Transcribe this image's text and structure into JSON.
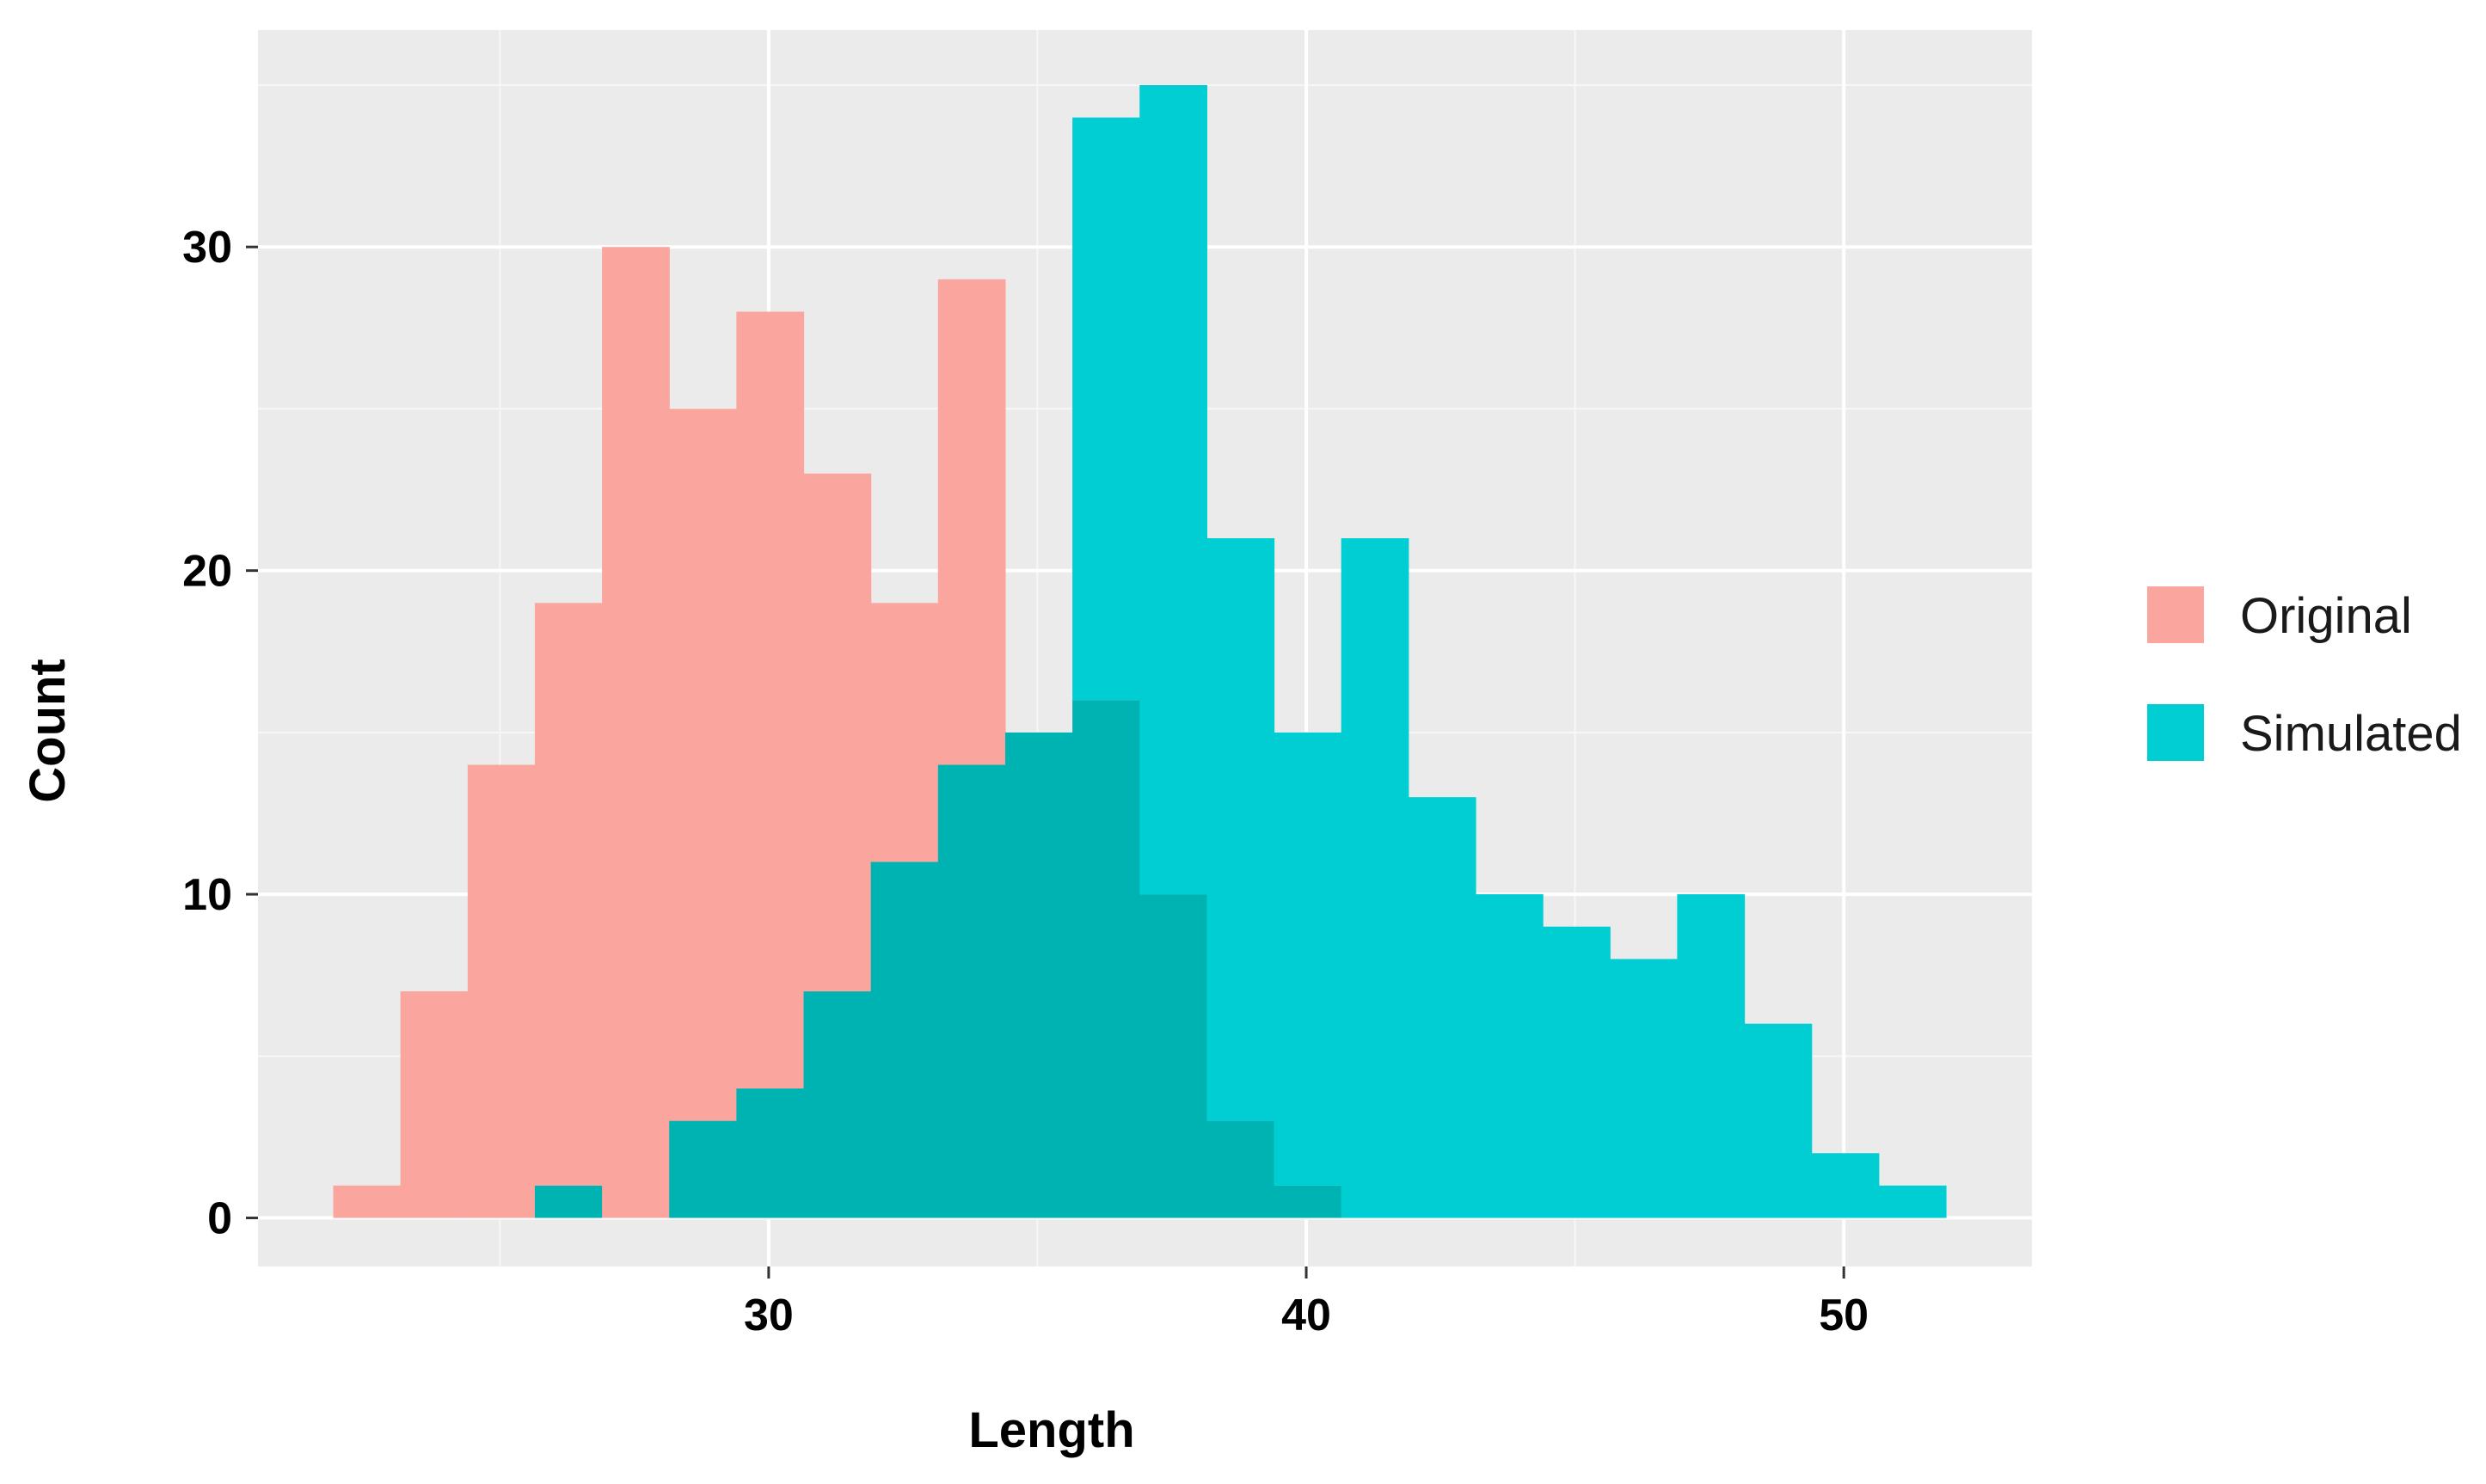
{
  "chart_data": {
    "type": "bar",
    "subtype": "overlapping-histogram",
    "title": "",
    "xlabel": "Length",
    "ylabel": "Count",
    "xlim": [
      20.5,
      53.5
    ],
    "ylim": [
      -1.5,
      36.7
    ],
    "x_ticks": [
      30,
      40,
      50
    ],
    "y_ticks": [
      0,
      10,
      20,
      30
    ],
    "minor_grid_x": [
      25,
      35,
      45
    ],
    "minor_grid_y": [
      5,
      15,
      25,
      35
    ],
    "bin_width": 1.25,
    "bin_start": 21.9,
    "grid": true,
    "legend_position": "right",
    "panel_background": "#ebebeb",
    "overlap_color": "#00b3b3",
    "series": [
      {
        "name": "Original",
        "color": "#f8766d",
        "fill": "#fba59f",
        "bin_starts": [
          21.9,
          23.15,
          24.4,
          25.65,
          26.9,
          28.15,
          29.4,
          30.65,
          31.9,
          33.15,
          34.4,
          35.65,
          36.9,
          38.15,
          39.4
        ],
        "values": [
          1,
          7,
          14,
          19,
          30,
          25,
          28,
          23,
          19,
          29,
          15,
          16,
          10,
          3,
          1
        ]
      },
      {
        "name": "Simulated",
        "color": "#00bfc4",
        "fill": "#00ced3",
        "bin_starts": [
          25.65,
          26.9,
          28.15,
          29.4,
          30.65,
          31.9,
          33.15,
          34.4,
          35.65,
          36.9,
          38.15,
          39.4,
          40.65,
          41.9,
          43.15,
          44.4,
          45.65,
          46.9,
          48.15,
          49.4,
          50.65
        ],
        "values": [
          1,
          0,
          3,
          4,
          7,
          11,
          14,
          15,
          34,
          35,
          21,
          15,
          21,
          13,
          10,
          9,
          8,
          10,
          6,
          2,
          1
        ]
      }
    ]
  }
}
